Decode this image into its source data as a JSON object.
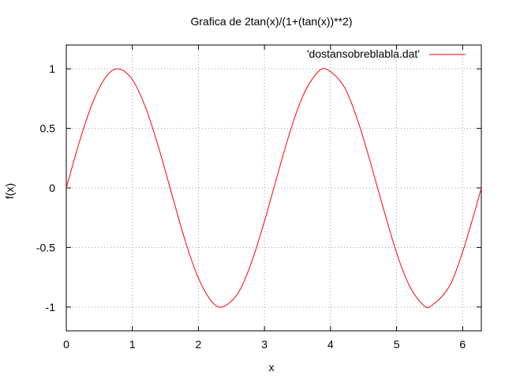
{
  "chart_data": {
    "type": "line",
    "title": "Grafica de 2tan(x)/(1+(tan(x))**2)",
    "xlabel": "x",
    "ylabel": "f(x)",
    "xlim": [
      0,
      6.283
    ],
    "ylim": [
      -1.2,
      1.2
    ],
    "x_ticks": [
      0,
      1,
      2,
      3,
      4,
      5,
      6
    ],
    "x_tick_labels": [
      "0",
      "1",
      "2",
      "3",
      "4",
      "5",
      "6"
    ],
    "y_ticks": [
      -1,
      -0.5,
      0,
      0.5,
      1
    ],
    "y_tick_labels": [
      "-1",
      "-0.5",
      "0",
      "0.5",
      "1"
    ],
    "grid": true,
    "legend_position": "top-right",
    "series": [
      {
        "name": "'dostansobreblabla.dat'",
        "color": "#ff0000",
        "x": [
          0,
          0.2,
          0.4,
          0.6,
          0.785,
          1.0,
          1.2,
          1.4,
          1.571,
          1.8,
          2.0,
          2.2,
          2.356,
          2.6,
          2.8,
          3.0,
          3.142,
          3.4,
          3.6,
          3.8,
          3.927,
          4.2,
          4.4,
          4.6,
          4.712,
          5.0,
          5.2,
          5.4,
          5.498,
          5.8,
          6.0,
          6.2,
          6.283
        ],
        "y": [
          0,
          0.389,
          0.717,
          0.932,
          1.0,
          0.909,
          0.675,
          0.335,
          0,
          -0.443,
          -0.757,
          -0.952,
          -1.0,
          -0.883,
          -0.631,
          -0.279,
          0,
          0.494,
          0.794,
          0.968,
          1.0,
          0.855,
          0.585,
          0.223,
          0,
          -0.544,
          -0.828,
          -0.981,
          -1.0,
          -0.825,
          -0.536,
          -0.166,
          0
        ]
      }
    ]
  }
}
